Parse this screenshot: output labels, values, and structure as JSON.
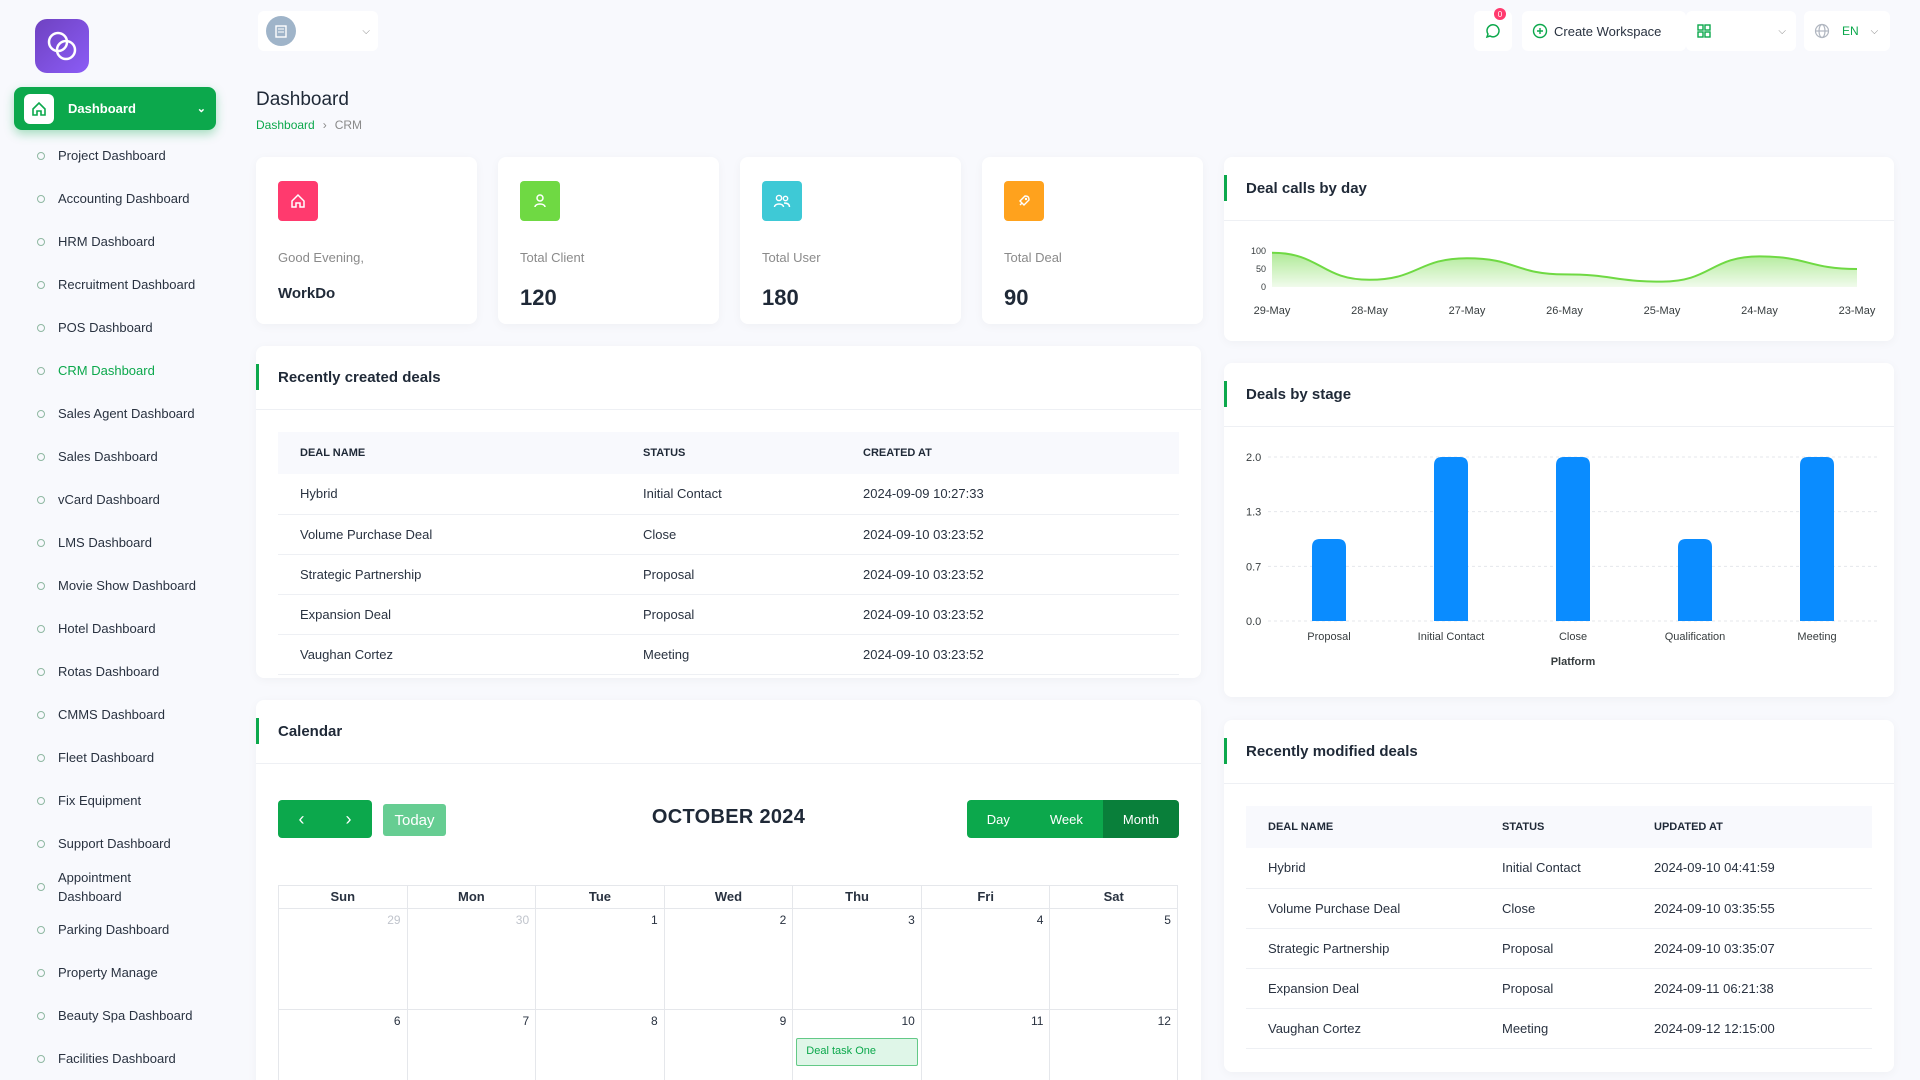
{
  "sidebar": {
    "main_item": "Dashboard",
    "items": [
      {
        "label": "Project Dashboard"
      },
      {
        "label": "Accounting Dashboard"
      },
      {
        "label": "HRM Dashboard"
      },
      {
        "label": "Recruitment Dashboard"
      },
      {
        "label": "POS Dashboard"
      },
      {
        "label": "CRM Dashboard",
        "active": true
      },
      {
        "label": "Sales Agent Dashboard"
      },
      {
        "label": "Sales Dashboard"
      },
      {
        "label": "vCard Dashboard"
      },
      {
        "label": "LMS Dashboard"
      },
      {
        "label": "Movie Show Dashboard"
      },
      {
        "label": "Hotel Dashboard"
      },
      {
        "label": "Rotas Dashboard"
      },
      {
        "label": "CMMS Dashboard"
      },
      {
        "label": "Fleet Dashboard"
      },
      {
        "label": "Fix Equipment"
      },
      {
        "label": "Support Dashboard"
      },
      {
        "label": "Appointment\nDashboard"
      },
      {
        "label": "Parking Dashboard"
      },
      {
        "label": "Property Manage"
      },
      {
        "label": "Beauty Spa Dashboard"
      },
      {
        "label": "Facilities Dashboard"
      }
    ]
  },
  "header": {
    "notification_count": "0",
    "create_workspace": "Create Workspace",
    "language": "EN"
  },
  "page": {
    "title": "Dashboard",
    "breadcrumb": [
      "Dashboard",
      "CRM"
    ]
  },
  "stats": [
    {
      "label": "Good Evening,",
      "value": "WorkDo",
      "color": "#ff3a6e",
      "icon": "home-icon"
    },
    {
      "label": "Total Client",
      "value": "120",
      "color": "#6fd943",
      "icon": "user-icon"
    },
    {
      "label": "Total User",
      "value": "180",
      "color": "#3ec9d6",
      "icon": "users-icon"
    },
    {
      "label": "Total Deal",
      "value": "90",
      "color": "#ffa21d",
      "icon": "rocket-icon"
    }
  ],
  "recent_deals": {
    "title": "Recently created deals",
    "columns": [
      "DEAL NAME",
      "STATUS",
      "CREATED AT"
    ],
    "rows": [
      [
        "Hybrid",
        "Initial Contact",
        "2024-09-09 10:27:33"
      ],
      [
        "Volume Purchase Deal",
        "Close",
        "2024-09-10 03:23:52"
      ],
      [
        "Strategic Partnership",
        "Proposal",
        "2024-09-10 03:23:52"
      ],
      [
        "Expansion Deal",
        "Proposal",
        "2024-09-10 03:23:52"
      ],
      [
        "Vaughan Cortez",
        "Meeting",
        "2024-09-10 03:23:52"
      ]
    ]
  },
  "calendar": {
    "title": "Calendar",
    "month_label": "OCTOBER 2024",
    "today_label": "Today",
    "views": [
      "Day",
      "Week",
      "Month"
    ],
    "active_view": "Month",
    "weekdays": [
      "Sun",
      "Mon",
      "Tue",
      "Wed",
      "Thu",
      "Fri",
      "Sat"
    ],
    "weeks": [
      [
        {
          "d": "29",
          "other": true
        },
        {
          "d": "30",
          "other": true
        },
        {
          "d": "1"
        },
        {
          "d": "2"
        },
        {
          "d": "3"
        },
        {
          "d": "4"
        },
        {
          "d": "5"
        }
      ],
      [
        {
          "d": "6"
        },
        {
          "d": "7"
        },
        {
          "d": "8"
        },
        {
          "d": "9"
        },
        {
          "d": "10",
          "event": "Deal task One"
        },
        {
          "d": "11"
        },
        {
          "d": "12"
        }
      ]
    ]
  },
  "modified_deals": {
    "title": "Recently modified deals",
    "columns": [
      "DEAL NAME",
      "STATUS",
      "UPDATED AT"
    ],
    "rows": [
      [
        "Hybrid",
        "Initial Contact",
        "2024-09-10 04:41:59"
      ],
      [
        "Volume Purchase Deal",
        "Close",
        "2024-09-10 03:35:55"
      ],
      [
        "Strategic Partnership",
        "Proposal",
        "2024-09-10 03:35:07"
      ],
      [
        "Expansion Deal",
        "Proposal",
        "2024-09-11 06:21:38"
      ],
      [
        "Vaughan Cortez",
        "Meeting",
        "2024-09-12 12:15:00"
      ]
    ]
  },
  "chart_data": [
    {
      "type": "area",
      "title": "Deal calls by day",
      "x": [
        "29-May",
        "28-May",
        "27-May",
        "26-May",
        "25-May",
        "24-May",
        "23-May"
      ],
      "series": [
        {
          "values": [
            95,
            20,
            80,
            35,
            15,
            85,
            50
          ]
        }
      ],
      "yticks": [
        "100",
        "50",
        "0"
      ],
      "ylim": [
        0,
        100
      ],
      "color": "#6fd943"
    },
    {
      "type": "bar",
      "title": "Deals by stage",
      "categories": [
        "Proposal",
        "Initial Contact",
        "Close",
        "Qualification",
        "Meeting"
      ],
      "values": [
        1,
        2,
        2,
        1,
        2
      ],
      "yticks": [
        "2.0",
        "1.3",
        "0.7",
        "0.0"
      ],
      "ylim": [
        0,
        2
      ],
      "xlabel": "Platform",
      "color": "#0a8cff"
    }
  ]
}
